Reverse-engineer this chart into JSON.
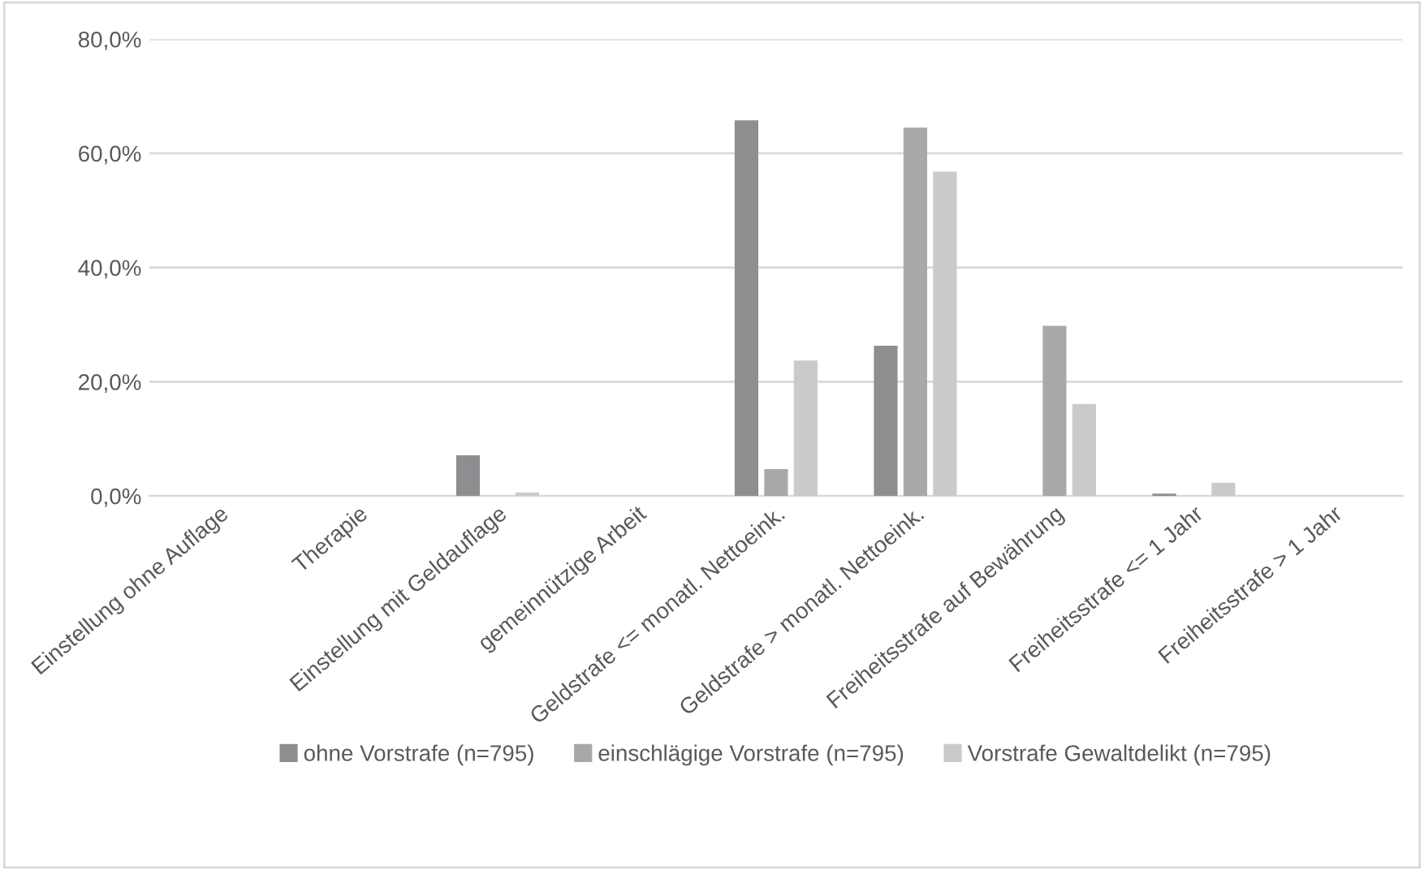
{
  "chart_data": {
    "type": "bar",
    "categories": [
      "Einstellung ohne Auflage",
      "Therapie",
      "Einstellung mit Geldauflage",
      "gemeinnützige Arbeit",
      "Geldstrafe <= monatl. Nettoeink.",
      "Geldstrafe > monatl. Nettoeink.",
      "Freiheitsstrafe auf Bewährung",
      "Freiheitsstrafe <= 1 Jahr",
      "Freiheitsstrafe > 1 Jahr"
    ],
    "series": [
      {
        "name": "ohne Vorstrafe (n=795)",
        "color": "#8e8e91",
        "values": [
          0,
          0,
          7.1,
          0,
          65.8,
          26.3,
          0,
          0.4,
          0
        ]
      },
      {
        "name": "einschlägige Vorstrafe (n=795)",
        "color": "#a8a8ab",
        "values": [
          0,
          0,
          0,
          0,
          4.7,
          64.5,
          29.8,
          0,
          0
        ]
      },
      {
        "name": "Vorstrafe Gewaltdelikt (n=795)",
        "color": "#cacacb",
        "values": [
          0,
          0,
          0.6,
          0,
          23.7,
          56.8,
          16.1,
          2.3,
          0
        ]
      }
    ],
    "ylim": [
      0,
      80
    ],
    "yticks": [
      {
        "value": 0,
        "label": "0,0%"
      },
      {
        "value": 20,
        "label": "20,0%"
      },
      {
        "value": 40,
        "label": "40,0%"
      },
      {
        "value": 60,
        "label": "60,0%"
      },
      {
        "value": 80,
        "label": "80,0%"
      }
    ],
    "grid": "y",
    "legend": "bottom"
  }
}
